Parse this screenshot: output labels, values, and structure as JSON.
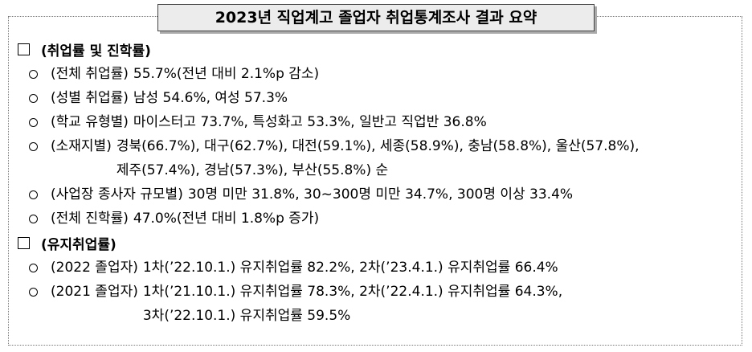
{
  "title": "2023년 직업계고 졸업자 취업통계조사 결과 요약",
  "sections": [
    {
      "heading": "(취업률 및 진학률)",
      "items": [
        {
          "label": "(전체 취업률)",
          "lines": [
            "55.7%(전년 대비 2.1%p 감소)"
          ]
        },
        {
          "label": "(성별 취업률)",
          "lines": [
            "남성 54.6%, 여성 57.3%"
          ]
        },
        {
          "label": "(학교 유형별)",
          "lines": [
            "마이스터고 73.7%, 특성화고 53.3%, 일반고 직업반 36.8%"
          ]
        },
        {
          "label": "(소재지별)",
          "lines": [
            "경북(66.7%), 대구(62.7%), 대전(59.1%), 세종(58.9%), 충남(58.8%), 울산(57.8%),",
            "제주(57.4%), 경남(57.3%), 부산(55.8%) 순"
          ]
        },
        {
          "label": "(사업장 종사자 규모별)",
          "lines": [
            "30명 미만 31.8%, 30~300명 미만 34.7%, 300명 이상 33.4%"
          ]
        },
        {
          "label": "(전체 진학률)",
          "lines": [
            "47.0%(전년 대비 1.8%p 증가)"
          ]
        }
      ]
    },
    {
      "heading": "(유지취업률)",
      "items": [
        {
          "label": "(2022 졸업자)",
          "lines": [
            "1차(’22.10.1.) 유지취업률 82.2%, 2차(’23.4.1.) 유지취업률 66.4%"
          ]
        },
        {
          "label": "(2021 졸업자)",
          "lines": [
            "1차(’21.10.1.) 유지취업률 78.3%, 2차(’22.4.1.) 유지취업률 64.3%,",
            "3차(’22.10.1.) 유지취업률 59.5%"
          ]
        }
      ]
    }
  ]
}
